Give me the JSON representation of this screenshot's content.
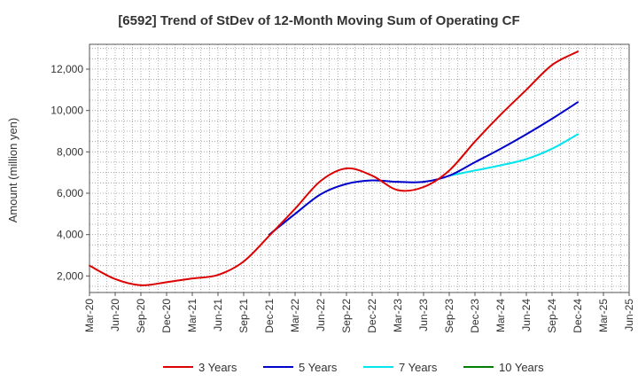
{
  "chart_data": {
    "type": "line",
    "title": "[6592]  Trend of StDev of 12-Month Moving Sum of Operating CF",
    "xlabel": "",
    "ylabel": "Amount (million yen)",
    "ylim": [
      1200,
      13200
    ],
    "yticks": [
      2000,
      4000,
      6000,
      8000,
      10000,
      12000
    ],
    "ytick_labels": [
      "2,000",
      "4,000",
      "6,000",
      "8,000",
      "10,000",
      "12,000"
    ],
    "grid": true,
    "legend_position": "bottom",
    "x": [
      "Mar-20",
      "Jun-20",
      "Sep-20",
      "Dec-20",
      "Mar-21",
      "Jun-21",
      "Sep-21",
      "Dec-21",
      "Mar-22",
      "Jun-22",
      "Sep-22",
      "Dec-22",
      "Mar-23",
      "Jun-23",
      "Sep-23",
      "Dec-23",
      "Mar-24",
      "Jun-24",
      "Sep-24",
      "Dec-24",
      "Mar-25",
      "Jun-25"
    ],
    "series": [
      {
        "name": "3 Years",
        "color": "#dd0000",
        "values": [
          2500,
          1850,
          1550,
          1700,
          1880,
          2050,
          2700,
          3950,
          5250,
          6600,
          7200,
          6850,
          6150,
          6300,
          7100,
          8500,
          9800,
          11000,
          12200,
          12850,
          null,
          null
        ]
      },
      {
        "name": "5 Years",
        "color": "#0000cc",
        "values": [
          null,
          null,
          null,
          null,
          null,
          null,
          null,
          4000,
          5000,
          5950,
          6450,
          6620,
          6550,
          6550,
          6850,
          7500,
          8150,
          8850,
          9600,
          10400,
          null,
          null
        ]
      },
      {
        "name": "7 Years",
        "color": "#00e5ee",
        "values": [
          null,
          null,
          null,
          null,
          null,
          null,
          null,
          null,
          null,
          null,
          null,
          null,
          null,
          null,
          6850,
          7100,
          7350,
          7650,
          8150,
          8850,
          null,
          null
        ]
      },
      {
        "name": "10 Years",
        "color": "#008000",
        "values": [
          null,
          null,
          null,
          null,
          null,
          null,
          null,
          null,
          null,
          null,
          null,
          null,
          null,
          null,
          null,
          null,
          null,
          null,
          null,
          null,
          null,
          null
        ]
      }
    ]
  }
}
